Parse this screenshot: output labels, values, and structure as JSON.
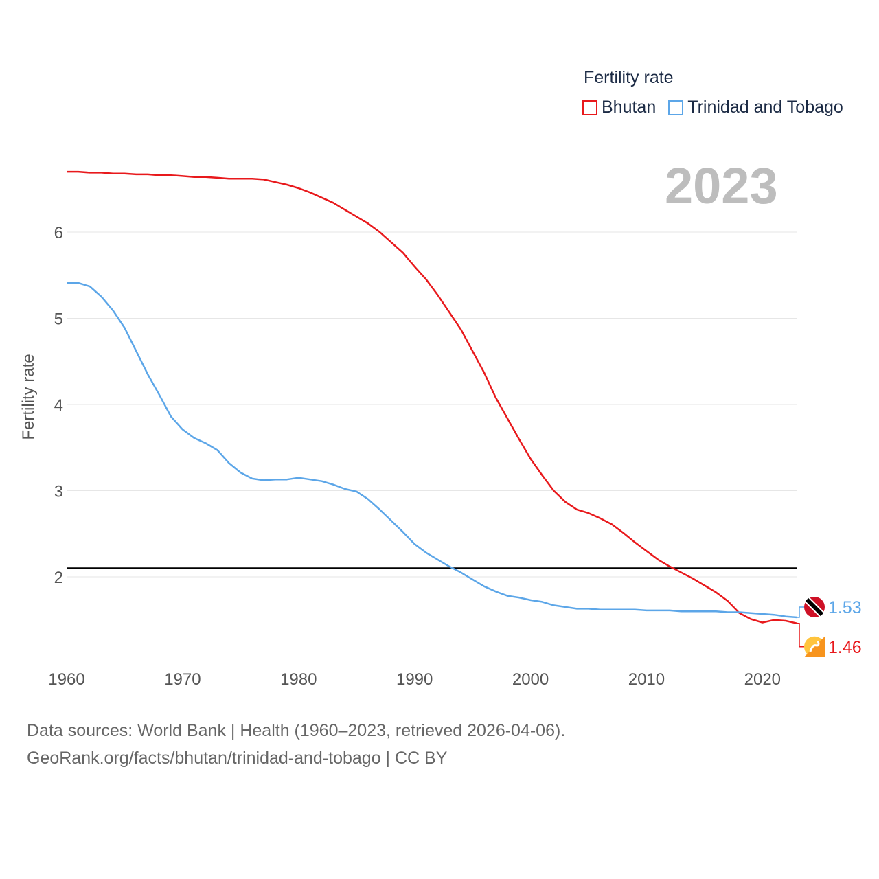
{
  "legend": {
    "title": "Fertility rate",
    "items": [
      {
        "label": "Bhutan",
        "color": "#e8191c"
      },
      {
        "label": "Trinidad and Tobago",
        "color": "#5ca6e8"
      }
    ]
  },
  "year_display": "2023",
  "footer": {
    "line1": "Data sources: World Bank | Health (1960–2023, retrieved 2026-04-06).",
    "line2": "GeoRank.org/facts/bhutan/trinidad-and-tobago | CC BY"
  },
  "chart_data": {
    "type": "line",
    "title": "Fertility rate",
    "xlabel": "",
    "ylabel": "Fertility rate",
    "xlim": [
      1960,
      2023
    ],
    "ylim": [
      1.0,
      6.8
    ],
    "x_ticks": [
      1960,
      1970,
      1980,
      1990,
      2000,
      2010,
      2020
    ],
    "y_ticks": [
      2,
      3,
      4,
      5,
      6
    ],
    "grid": true,
    "reference_line": {
      "y": 2.1,
      "color": "#000000"
    },
    "x": [
      1960,
      1961,
      1962,
      1963,
      1964,
      1965,
      1966,
      1967,
      1968,
      1969,
      1970,
      1971,
      1972,
      1973,
      1974,
      1975,
      1976,
      1977,
      1978,
      1979,
      1980,
      1981,
      1982,
      1983,
      1984,
      1985,
      1986,
      1987,
      1988,
      1989,
      1990,
      1991,
      1992,
      1993,
      1994,
      1995,
      1996,
      1997,
      1998,
      1999,
      2000,
      2001,
      2002,
      2003,
      2004,
      2005,
      2006,
      2007,
      2008,
      2009,
      2010,
      2011,
      2012,
      2013,
      2014,
      2015,
      2016,
      2017,
      2018,
      2019,
      2020,
      2021,
      2022,
      2023
    ],
    "series": [
      {
        "name": "Bhutan",
        "color": "#e8191c",
        "end_label": "1.46",
        "values": [
          6.7,
          6.7,
          6.69,
          6.69,
          6.68,
          6.68,
          6.67,
          6.67,
          6.66,
          6.66,
          6.65,
          6.64,
          6.64,
          6.63,
          6.62,
          6.62,
          6.62,
          6.61,
          6.58,
          6.55,
          6.51,
          6.46,
          6.4,
          6.34,
          6.26,
          6.18,
          6.1,
          6.0,
          5.88,
          5.76,
          5.6,
          5.45,
          5.27,
          5.07,
          4.87,
          4.62,
          4.37,
          4.08,
          3.84,
          3.6,
          3.37,
          3.18,
          3.0,
          2.87,
          2.78,
          2.74,
          2.68,
          2.61,
          2.51,
          2.4,
          2.3,
          2.2,
          2.12,
          2.05,
          1.98,
          1.9,
          1.82,
          1.72,
          1.58,
          1.51,
          1.47,
          1.5,
          1.49,
          1.46
        ]
      },
      {
        "name": "Trinidad and Tobago",
        "color": "#5ca6e8",
        "end_label": "1.53",
        "values": [
          5.41,
          5.41,
          5.37,
          5.25,
          5.09,
          4.89,
          4.62,
          4.35,
          4.11,
          3.86,
          3.71,
          3.61,
          3.55,
          3.47,
          3.32,
          3.21,
          3.14,
          3.12,
          3.13,
          3.13,
          3.15,
          3.13,
          3.11,
          3.07,
          3.02,
          2.99,
          2.9,
          2.78,
          2.65,
          2.52,
          2.38,
          2.28,
          2.2,
          2.12,
          2.05,
          1.97,
          1.89,
          1.83,
          1.78,
          1.76,
          1.73,
          1.71,
          1.67,
          1.65,
          1.63,
          1.63,
          1.62,
          1.62,
          1.62,
          1.62,
          1.61,
          1.61,
          1.61,
          1.6,
          1.6,
          1.6,
          1.6,
          1.59,
          1.59,
          1.58,
          1.57,
          1.56,
          1.54,
          1.53
        ]
      }
    ]
  }
}
